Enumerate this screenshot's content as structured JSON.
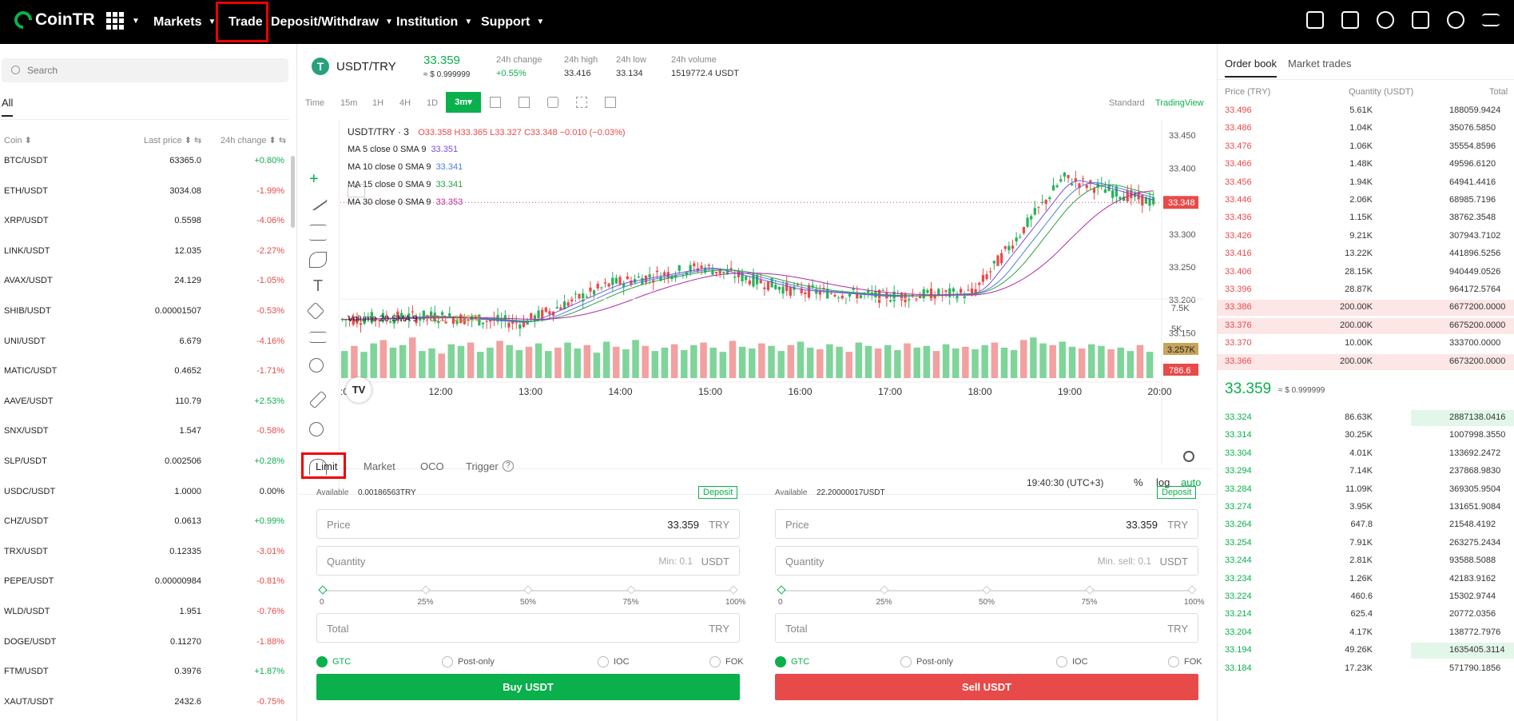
{
  "topbar": {
    "logo": "CoinTR",
    "nav": [
      {
        "label": "Markets",
        "caret": true,
        "x": 192
      },
      {
        "label": "Trade",
        "caret": false,
        "x": 286
      },
      {
        "label": "Deposit/Withdraw",
        "caret": true,
        "x": 339
      },
      {
        "label": "Institution",
        "caret": true,
        "x": 496
      },
      {
        "label": "Support",
        "caret": true,
        "x": 602
      }
    ]
  },
  "left": {
    "search_placeholder": "Search",
    "tab_all": "All",
    "headers": {
      "coin": "Coin ⬍",
      "last_price": "Last price ⬍ ⇆",
      "change": "24h change ⬍ ⇆"
    },
    "rows": [
      {
        "coin": "BTC/USDT",
        "price": "63365.0",
        "change": "+0.80%",
        "up": true
      },
      {
        "coin": "ETH/USDT",
        "price": "3034.08",
        "change": "-1.99%",
        "up": false
      },
      {
        "coin": "XRP/USDT",
        "price": "0.5598",
        "change": "-4.06%",
        "up": false
      },
      {
        "coin": "LINK/USDT",
        "price": "12.035",
        "change": "-2.27%",
        "up": false
      },
      {
        "coin": "AVAX/USDT",
        "price": "24.129",
        "change": "-1.05%",
        "up": false
      },
      {
        "coin": "SHIB/USDT",
        "price": "0.00001507",
        "change": "-0.53%",
        "up": false
      },
      {
        "coin": "UNI/USDT",
        "price": "6.679",
        "change": "-4.16%",
        "up": false
      },
      {
        "coin": "MATIC/USDT",
        "price": "0.4652",
        "change": "-1.71%",
        "up": false
      },
      {
        "coin": "AAVE/USDT",
        "price": "110.79",
        "change": "+2.53%",
        "up": true
      },
      {
        "coin": "SNX/USDT",
        "price": "1.547",
        "change": "-0.58%",
        "up": false
      },
      {
        "coin": "SLP/USDT",
        "price": "0.002506",
        "change": "+0.28%",
        "up": true
      },
      {
        "coin": "USDC/USDT",
        "price": "1.0000",
        "change": "0.00%",
        "up": null
      },
      {
        "coin": "CHZ/USDT",
        "price": "0.0613",
        "change": "+0.99%",
        "up": true
      },
      {
        "coin": "TRX/USDT",
        "price": "0.12335",
        "change": "-3.01%",
        "up": false
      },
      {
        "coin": "PEPE/USDT",
        "price": "0.00000984",
        "change": "-0.81%",
        "up": false
      },
      {
        "coin": "WLD/USDT",
        "price": "1.951",
        "change": "-0.76%",
        "up": false
      },
      {
        "coin": "DOGE/USDT",
        "price": "0.11270",
        "change": "-1.88%",
        "up": false
      },
      {
        "coin": "FTM/USDT",
        "price": "0.3976",
        "change": "+1.87%",
        "up": true
      },
      {
        "coin": "XAUT/USDT",
        "price": "2432.6",
        "change": "-0.75%",
        "up": false
      }
    ]
  },
  "ticker": {
    "pair": "USDT/TRY",
    "price": "33.359",
    "price_sub": "≈ $ 0.999999",
    "stats": [
      {
        "label": "24h change",
        "value": "+0.55%"
      },
      {
        "label": "24h high",
        "value": "33.416"
      },
      {
        "label": "24h low",
        "value": "33.134"
      },
      {
        "label": "24h volume",
        "value": "1519772.4 USDT"
      }
    ]
  },
  "chart_toolbar": {
    "intervals": [
      "Time",
      "15m",
      "1H",
      "4H",
      "1D"
    ],
    "active": "3m",
    "standard": "Standard",
    "tradingview": "TradingView"
  },
  "chart_legend": {
    "title": "USDT/TRY · 3",
    "ohlc": "O33.358  H33.365  L33.327  C33.348  −0.010 (−0.03%)",
    "mas": [
      {
        "label": "MA 5 close 0 SMA 9",
        "value": "33.351",
        "color": "#7a4fd6"
      },
      {
        "label": "MA 10 close 0 SMA 9",
        "value": "33.341",
        "color": "#4a7fd6"
      },
      {
        "label": "MA 15 close 0 SMA 9",
        "value": "33.341",
        "color": "#2ea043"
      },
      {
        "label": "MA 30 close 0 SMA 9",
        "value": "33.353",
        "color": "#b22aa2"
      }
    ],
    "volume": "Volume 20 SMA 9",
    "vol_v1": "786.6",
    "vol_v2": "3.257K"
  },
  "chart_data": {
    "type": "line",
    "title": "USDT/TRY · 3",
    "x": [
      "11:00",
      "12:00",
      "13:00",
      "14:00",
      "15:00",
      "16:00",
      "17:00",
      "18:00",
      "19:00",
      "19:40"
    ],
    "series": [
      {
        "values": [
          33.17,
          33.175,
          33.165,
          33.225,
          33.25,
          33.215,
          33.205,
          33.21,
          33.385,
          33.348
        ]
      }
    ],
    "y_ticks": [
      "33.450",
      "33.400",
      "33.350",
      "33.300",
      "33.250",
      "33.200",
      "33.150"
    ],
    "x_ticks": [
      ":00",
      "12:00",
      "13:00",
      "14:00",
      "15:00",
      "16:00",
      "17:00",
      "18:00",
      "19:00",
      "20:00"
    ],
    "vol_ticks": [
      "7.5K",
      "5K",
      "2.5K"
    ],
    "last_price_tag": "33.348",
    "vol_tag1": "3.257K",
    "vol_tag2": "786.6",
    "ylim": [
      33.12,
      33.46
    ],
    "volume_values": [
      3.2,
      3.8,
      3.1,
      4.1,
      4.5,
      3.6,
      3.9,
      4.8,
      3.2,
      3.5,
      2.9,
      4.0,
      3.8,
      4.2,
      3.1,
      3.6,
      4.4,
      3.9,
      3.3,
      3.7,
      4.1,
      3.2,
      3.6,
      4.2,
      3.5,
      3.9,
      3.0,
      4.3,
      3.7,
      3.4,
      4.5,
      3.8,
      3.2,
      3.6,
      4.0,
      3.3,
      3.9,
      4.2,
      3.6,
      3.1,
      4.4,
      3.7,
      3.5,
      4.1,
      3.8,
      3.2,
      3.9,
      4.3,
      3.6,
      3.4,
      4.0,
      3.7,
      3.1,
      4.2,
      3.8,
      3.5,
      3.9,
      3.3,
      4.1,
      3.6,
      3.8,
      3.2,
      4.0,
      3.5,
      3.7,
      3.4,
      3.9,
      4.2,
      3.6,
      3.3,
      4.5,
      4.8,
      4.1,
      3.9,
      4.3,
      3.7,
      3.5,
      4.0,
      3.8,
      3.4,
      3.6,
      3.2,
      3.9,
      3.1
    ]
  },
  "chart_footer": {
    "time": "19:40:30 (UTC+3)",
    "pct": "%",
    "log": "log",
    "auto": "auto"
  },
  "order_types": [
    "Limit",
    "Market",
    "OCO",
    "Trigger"
  ],
  "buy": {
    "available_label": "Available",
    "available": "0.00186563TRY",
    "deposit": "Deposit",
    "price_label": "Price",
    "price": "33.359",
    "price_unit": "TRY",
    "qty_label": "Quantity",
    "qty_min": "Min: 0.1",
    "qty_unit": "USDT",
    "total_label": "Total",
    "total_unit": "TRY",
    "button": "Buy USDT"
  },
  "sell": {
    "available_label": "Available",
    "available": "22.20000017USDT",
    "deposit": "Deposit",
    "price_label": "Price",
    "price": "33.359",
    "price_unit": "TRY",
    "qty_label": "Quantity",
    "qty_min": "Min. sell: 0.1",
    "qty_unit": "USDT",
    "total_label": "Total",
    "total_unit": "TRY",
    "button": "Sell USDT"
  },
  "slider_labels": [
    "0",
    "25%",
    "50%",
    "75%",
    "100%"
  ],
  "tif": [
    "GTC",
    "Post-only",
    "IOC",
    "FOK"
  ],
  "orderbook": {
    "tabs": [
      "Order book",
      "Market trades"
    ],
    "headers": [
      "Price (TRY)",
      "Quantity (USDT)",
      "Total"
    ],
    "asks": [
      {
        "p": "33.496",
        "q": "5.61K",
        "t": "188059.9424",
        "h": false
      },
      {
        "p": "33.486",
        "q": "1.04K",
        "t": "35076.5850",
        "h": false
      },
      {
        "p": "33.476",
        "q": "1.06K",
        "t": "35554.8596",
        "h": false
      },
      {
        "p": "33.466",
        "q": "1.48K",
        "t": "49596.6120",
        "h": false
      },
      {
        "p": "33.456",
        "q": "1.94K",
        "t": "64941.4416",
        "h": false
      },
      {
        "p": "33.446",
        "q": "2.06K",
        "t": "68985.7196",
        "h": false
      },
      {
        "p": "33.436",
        "q": "1.15K",
        "t": "38762.3548",
        "h": false
      },
      {
        "p": "33.426",
        "q": "9.21K",
        "t": "307943.7102",
        "h": false
      },
      {
        "p": "33.416",
        "q": "13.22K",
        "t": "441896.5256",
        "h": false
      },
      {
        "p": "33.406",
        "q": "28.15K",
        "t": "940449.0526",
        "h": false
      },
      {
        "p": "33.396",
        "q": "28.87K",
        "t": "964172.5764",
        "h": false
      },
      {
        "p": "33.386",
        "q": "200.00K",
        "t": "6677200.0000",
        "h": true
      },
      {
        "p": "33.376",
        "q": "200.00K",
        "t": "6675200.0000",
        "h": true
      },
      {
        "p": "33.370",
        "q": "10.00K",
        "t": "333700.0000",
        "h": false
      },
      {
        "p": "33.366",
        "q": "200.00K",
        "t": "6673200.0000",
        "h": true
      }
    ],
    "mid_price": "33.359",
    "mid_sub": "≈ $ 0.999999",
    "bids": [
      {
        "p": "33.324",
        "q": "86.63K",
        "t": "2887138.0416",
        "h": true
      },
      {
        "p": "33.314",
        "q": "30.25K",
        "t": "1007998.3550",
        "h": false
      },
      {
        "p": "33.304",
        "q": "4.01K",
        "t": "133692.2472",
        "h": false
      },
      {
        "p": "33.294",
        "q": "7.14K",
        "t": "237868.9830",
        "h": false
      },
      {
        "p": "33.284",
        "q": "11.09K",
        "t": "369305.9504",
        "h": false
      },
      {
        "p": "33.274",
        "q": "3.95K",
        "t": "131651.9084",
        "h": false
      },
      {
        "p": "33.264",
        "q": "647.8",
        "t": "21548.4192",
        "h": false
      },
      {
        "p": "33.254",
        "q": "7.91K",
        "t": "263275.2434",
        "h": false
      },
      {
        "p": "33.244",
        "q": "2.81K",
        "t": "93588.5088",
        "h": false
      },
      {
        "p": "33.234",
        "q": "1.26K",
        "t": "42183.9162",
        "h": false
      },
      {
        "p": "33.224",
        "q": "460.6",
        "t": "15302.9744",
        "h": false
      },
      {
        "p": "33.214",
        "q": "625.4",
        "t": "20772.0356",
        "h": false
      },
      {
        "p": "33.204",
        "q": "4.17K",
        "t": "138772.7976",
        "h": false
      },
      {
        "p": "33.194",
        "q": "49.26K",
        "t": "1635405.3114",
        "h": true
      },
      {
        "p": "33.184",
        "q": "17.23K",
        "t": "571790.1856",
        "h": false
      }
    ]
  }
}
